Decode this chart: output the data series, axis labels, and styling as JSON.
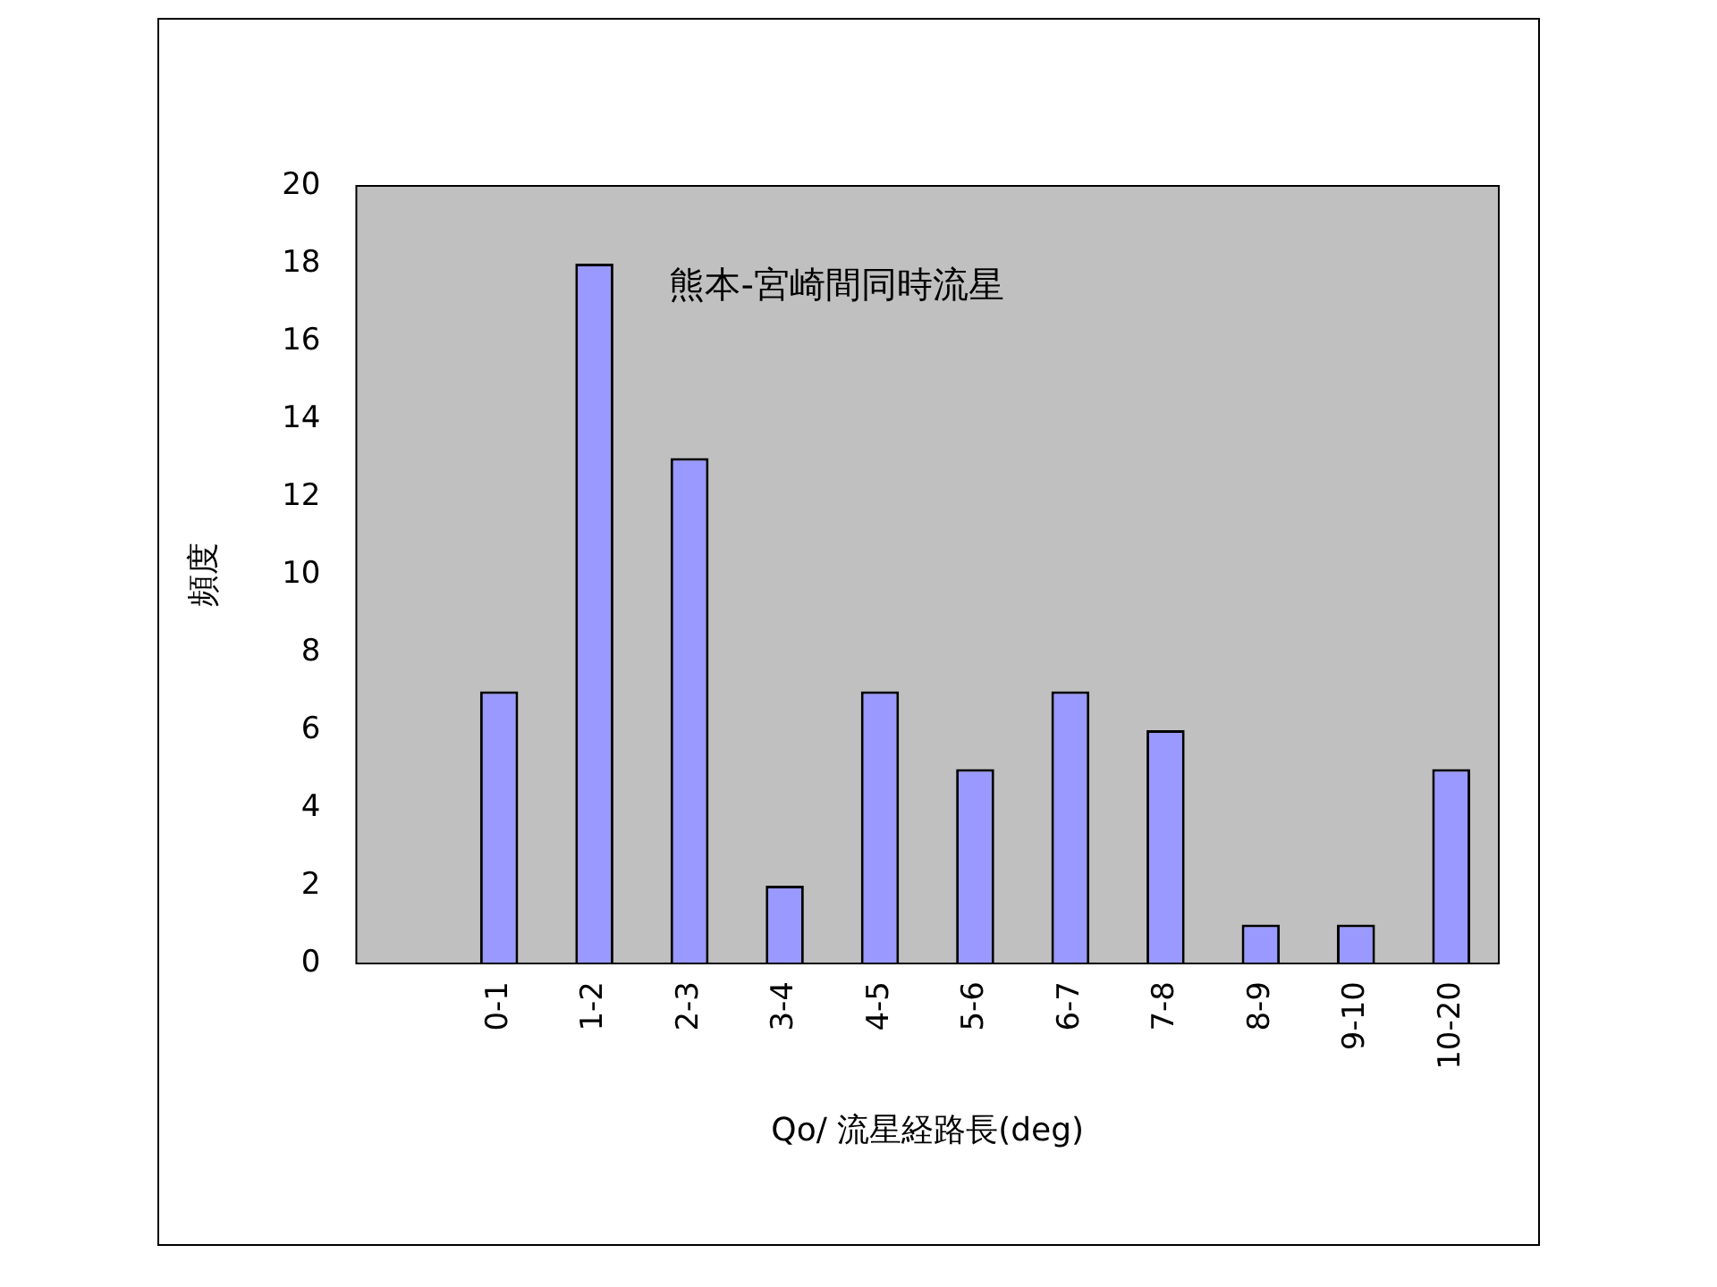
{
  "chart_data": {
    "type": "bar",
    "title": "熊本-宮崎間同時流星",
    "xlabel": "Qo/ 流星経路長(deg)",
    "ylabel": "頻度",
    "categories": [
      null,
      "0-1",
      "1-2",
      "2-3",
      "3-4",
      "4-5",
      "5-6",
      "6-7",
      "7-8",
      "8-9",
      "9-10",
      "10-20"
    ],
    "values": [
      null,
      7,
      18,
      13,
      2,
      7,
      5,
      7,
      6,
      1,
      1,
      5
    ],
    "color": "#9999ff",
    "ylim": [
      0,
      20
    ],
    "yticks": [
      0,
      2,
      4,
      6,
      8,
      10,
      12,
      14,
      16,
      18,
      20
    ],
    "grid": false,
    "legend": false
  }
}
